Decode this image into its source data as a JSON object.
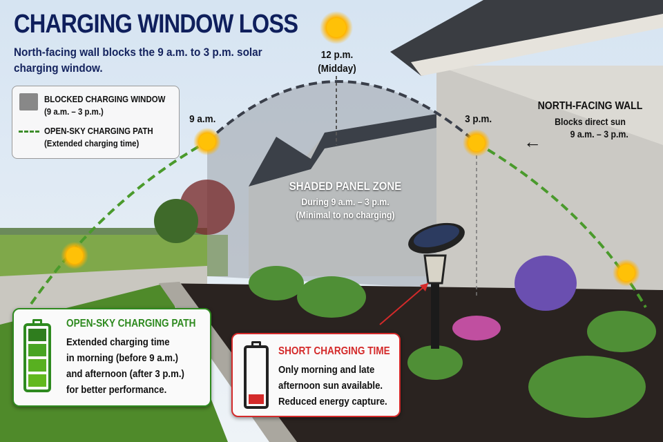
{
  "header": {
    "title": "CHARGING WINDOW LOSS",
    "subtitle": "North-facing wall blocks the 9 a.m. to 3 p.m. solar charging window."
  },
  "legend": {
    "blocked_label": "BLOCKED CHARGING WINDOW",
    "blocked_sub": "(9 a.m. – 3 p.m.)",
    "open_label": "OPEN-SKY CHARGING PATH",
    "open_sub": "(Extended charging time)",
    "blocked_color": "#888888",
    "open_color": "#3c8c2a"
  },
  "sun_labels": {
    "nine": "9 a.m.",
    "noon": "12 p.m.",
    "noon_sub": "(Midday)",
    "three": "3 p.m."
  },
  "wall_label": {
    "title": "NORTH-FACING WALL",
    "line1": "Blocks direct sun",
    "line2": "9 a.m. – 3 p.m.",
    "arrow_icon": "arrow-left-icon"
  },
  "shaded_zone": {
    "title": "SHADED PANEL ZONE",
    "line1": "During 9 a.m. – 3 p.m.",
    "line2": "(Minimal to no charging)"
  },
  "open_card": {
    "title": "OPEN-SKY CHARGING PATH",
    "lines": [
      "Extended charging time",
      "in morning (before 9 a.m.)",
      "and afternoon (after 3 p.m.)",
      "for better performance."
    ],
    "battery_level": 1.0,
    "color": "#2e8a1f"
  },
  "short_card": {
    "title": "SHORT CHARGING TIME",
    "lines": [
      "Only morning and late",
      "afternoon sun available.",
      "Reduced energy capture."
    ],
    "battery_level": 0.15,
    "color": "#d42a2a"
  }
}
